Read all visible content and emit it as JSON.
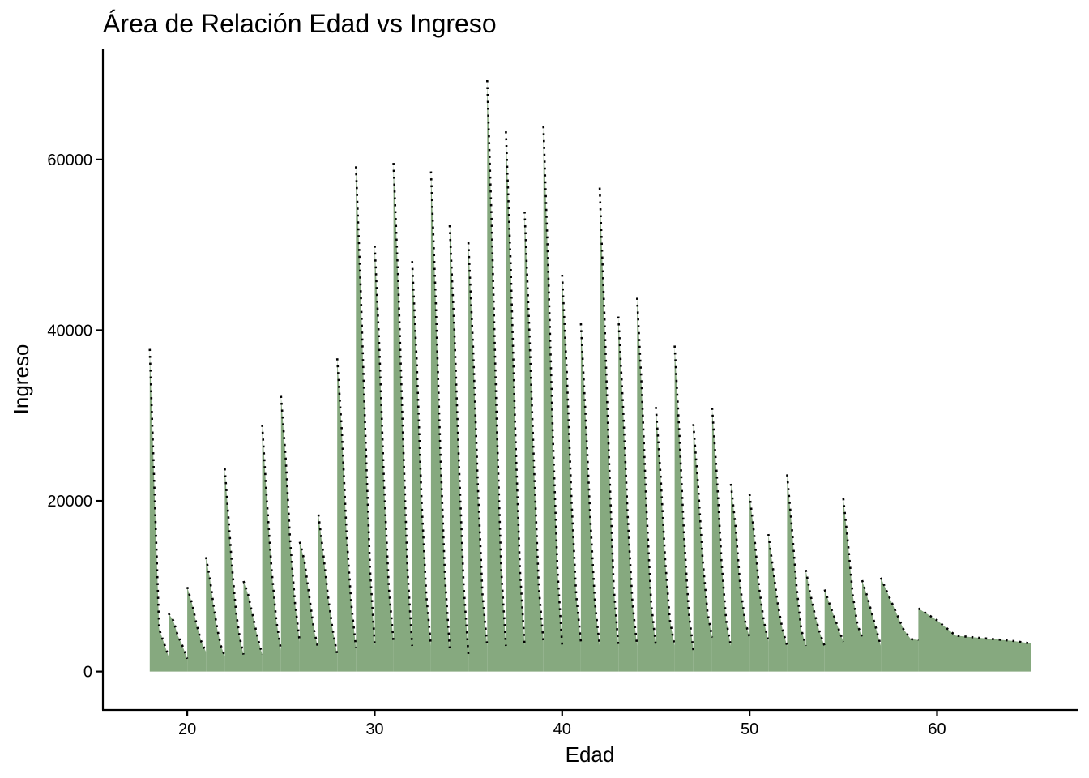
{
  "chart_data": {
    "type": "area",
    "title": "Área de Relación Edad vs Ingreso",
    "xlabel": "Edad",
    "ylabel": "Ingreso",
    "xlim": [
      15.5,
      67.5
    ],
    "ylim": [
      -4500,
      73000
    ],
    "x_ticks": [
      20,
      30,
      40,
      50,
      60
    ],
    "y_ticks": [
      0,
      20000,
      40000,
      60000
    ],
    "grid": false,
    "legend": "none",
    "colors": {
      "area": "#86a97f",
      "line": "#000000"
    },
    "segments": [
      {
        "age": 18,
        "values": [
          37800,
          5000,
          1800
        ]
      },
      {
        "age": 19,
        "values": [
          6800,
          6000,
          4200,
          3000,
          1500
        ]
      },
      {
        "age": 20,
        "values": [
          9900,
          8000,
          5500,
          3500,
          2300
        ]
      },
      {
        "age": 21,
        "values": [
          13400,
          11000,
          7800,
          5000,
          3000,
          1800
        ]
      },
      {
        "age": 22,
        "values": [
          23800,
          18000,
          12000,
          7000,
          4000,
          2000
        ]
      },
      {
        "age": 23,
        "values": [
          10600,
          9000,
          6500,
          4000,
          2000
        ]
      },
      {
        "age": 24,
        "values": [
          28900,
          20000,
          12000,
          6000,
          2500
        ]
      },
      {
        "age": 25,
        "values": [
          32300,
          25000,
          15000,
          8000,
          3500
        ]
      },
      {
        "age": 26,
        "values": [
          15200,
          13000,
          9000,
          5000,
          2500
        ]
      },
      {
        "age": 27,
        "values": [
          18400,
          14000,
          9000,
          5000,
          2000
        ]
      },
      {
        "age": 28,
        "values": [
          36700,
          28000,
          16000,
          8000,
          2800
        ]
      },
      {
        "age": 29,
        "values": [
          59200,
          45000,
          28000,
          12000,
          3000
        ]
      },
      {
        "age": 30,
        "values": [
          49900,
          38000,
          22000,
          10000,
          3500
        ]
      },
      {
        "age": 31,
        "values": [
          59600,
          46000,
          28000,
          12000,
          3000
        ]
      },
      {
        "age": 32,
        "values": [
          48100,
          36000,
          20000,
          9000,
          3000
        ]
      },
      {
        "age": 33,
        "values": [
          58600,
          44000,
          26000,
          11000,
          2800
        ]
      },
      {
        "age": 34,
        "values": [
          52300,
          40000,
          24000,
          10000,
          2000
        ]
      },
      {
        "age": 35,
        "values": [
          50300,
          38000,
          22000,
          9000,
          3000
        ]
      },
      {
        "age": 36,
        "values": [
          69300,
          52000,
          30000,
          12000,
          3000
        ]
      },
      {
        "age": 37,
        "values": [
          63300,
          48000,
          28000,
          12000,
          3000
        ]
      },
      {
        "age": 38,
        "values": [
          53900,
          40000,
          24000,
          10000,
          3500
        ]
      },
      {
        "age": 39,
        "values": [
          63900,
          48000,
          28000,
          12000,
          3000
        ]
      },
      {
        "age": 40,
        "values": [
          46500,
          35000,
          20000,
          9000,
          3500
        ]
      },
      {
        "age": 41,
        "values": [
          40800,
          30000,
          18000,
          8000,
          3000
        ]
      },
      {
        "age": 42,
        "values": [
          56700,
          42000,
          25000,
          10000,
          3000
        ]
      },
      {
        "age": 43,
        "values": [
          41600,
          31000,
          18000,
          8000,
          3000
        ]
      },
      {
        "age": 44,
        "values": [
          43800,
          33000,
          19000,
          8000,
          3000
        ]
      },
      {
        "age": 45,
        "values": [
          31000,
          23000,
          13000,
          6000,
          3000
        ]
      },
      {
        "age": 46,
        "values": [
          38200,
          28000,
          16000,
          7000,
          2500
        ]
      },
      {
        "age": 47,
        "values": [
          29000,
          22000,
          13000,
          7000,
          4000
        ]
      },
      {
        "age": 48,
        "values": [
          30900,
          23000,
          13000,
          6000,
          3000
        ]
      },
      {
        "age": 49,
        "values": [
          22000,
          17000,
          10000,
          6000,
          4000
        ]
      },
      {
        "age": 50,
        "values": [
          20800,
          16000,
          10000,
          6000,
          3500
        ]
      },
      {
        "age": 51,
        "values": [
          16100,
          12000,
          8000,
          5000,
          3000
        ]
      },
      {
        "age": 52,
        "values": [
          23100,
          17000,
          10000,
          5000,
          3000
        ]
      },
      {
        "age": 53,
        "values": [
          11900,
          9000,
          6500,
          4500,
          3000
        ]
      },
      {
        "age": 54,
        "values": [
          9600,
          8000,
          6500,
          5000,
          3500
        ]
      },
      {
        "age": 55,
        "values": [
          20300,
          15000,
          9000,
          5500,
          4000
        ]
      },
      {
        "age": 56,
        "values": [
          10700,
          9000,
          7000,
          5000,
          3000
        ]
      },
      {
        "age": 57,
        "values": [
          11000,
          9000,
          7000,
          5000,
          3800,
          3700
        ]
      },
      {
        "age": 59,
        "values": [
          7400,
          6000,
          4200,
          4000,
          3800,
          3600,
          3300
        ]
      }
    ]
  }
}
